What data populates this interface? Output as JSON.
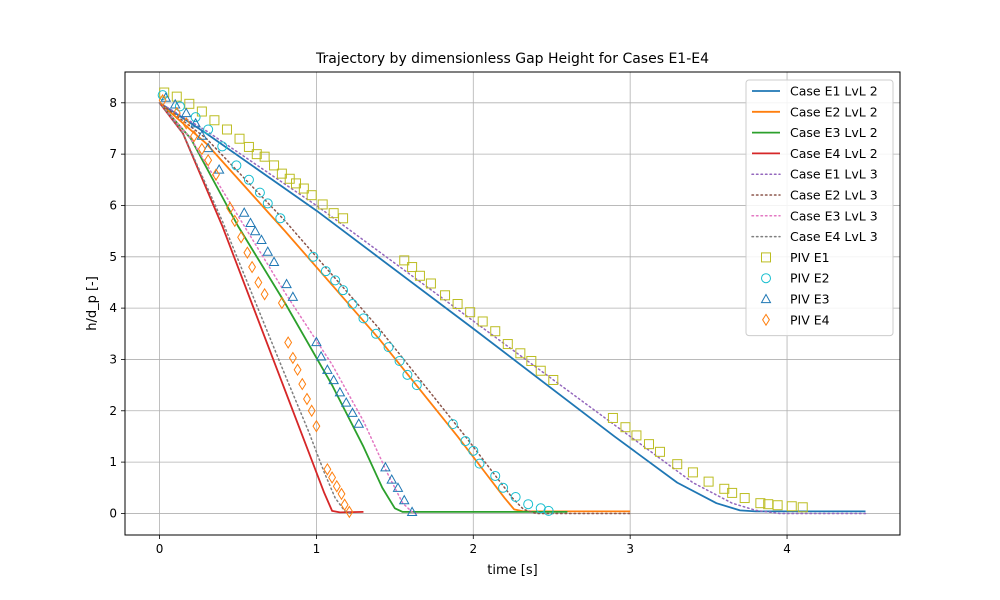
{
  "chart_data": {
    "type": "line",
    "title": "Trajectory by dimensionless Gap Height for Cases E1-E4",
    "xlabel": "time [s]",
    "ylabel": "h/d_p [-]",
    "xlim": [
      -0.22,
      4.72
    ],
    "ylim": [
      -0.42,
      8.6
    ],
    "xticks": [
      0,
      1,
      2,
      3,
      4
    ],
    "yticks": [
      0,
      1,
      2,
      3,
      4,
      5,
      6,
      7,
      8
    ],
    "grid": true,
    "legend_position": "top-right",
    "series": [
      {
        "name": "Case E1 LvL 2",
        "kind": "line",
        "style": "solid",
        "color": "#1f77b4",
        "x": [
          0,
          0.3,
          1.0,
          2.0,
          2.9,
          3.3,
          3.55,
          3.7,
          3.8,
          4.5
        ],
        "y": [
          8,
          7.4,
          5.9,
          3.6,
          1.5,
          0.6,
          0.2,
          0.06,
          0.04,
          0.04
        ]
      },
      {
        "name": "Case E2 LvL 2",
        "kind": "line",
        "style": "solid",
        "color": "#ff7f0e",
        "x": [
          0,
          0.3,
          0.8,
          1.4,
          1.9,
          2.1,
          2.2,
          2.26,
          2.32,
          3.0
        ],
        "y": [
          8,
          7.2,
          5.5,
          3.4,
          1.5,
          0.7,
          0.3,
          0.08,
          0.04,
          0.04
        ]
      },
      {
        "name": "Case E3 LvL 2",
        "kind": "line",
        "style": "solid",
        "color": "#2ca02c",
        "x": [
          0,
          0.2,
          0.5,
          0.8,
          1.1,
          1.3,
          1.42,
          1.5,
          1.55,
          2.6
        ],
        "y": [
          8,
          7.3,
          5.6,
          4.1,
          2.5,
          1.3,
          0.5,
          0.1,
          0.03,
          0.03
        ]
      },
      {
        "name": "Case E4 LvL 2",
        "kind": "line",
        "style": "solid",
        "color": "#d62728",
        "x": [
          0,
          0.15,
          0.4,
          0.6,
          0.8,
          0.95,
          1.05,
          1.1,
          1.15,
          1.3
        ],
        "y": [
          8,
          7.4,
          5.6,
          4.0,
          2.4,
          1.2,
          0.4,
          0.05,
          0.02,
          0.03
        ]
      },
      {
        "name": "Case E1 LvL 3",
        "kind": "line",
        "style": "dotted",
        "color": "#9467bd",
        "x": [
          0,
          0.3,
          1.0,
          2.0,
          3.0,
          3.4,
          3.65,
          3.8,
          3.95,
          4.5
        ],
        "y": [
          8,
          7.45,
          6.0,
          3.75,
          1.5,
          0.6,
          0.2,
          0.06,
          0.0,
          0.0
        ]
      },
      {
        "name": "Case E2 LvL 3",
        "kind": "line",
        "style": "dotted",
        "color": "#8c564b",
        "x": [
          0,
          0.3,
          0.8,
          1.4,
          1.95,
          2.15,
          2.25,
          2.32,
          2.4,
          3.0
        ],
        "y": [
          8,
          7.3,
          5.7,
          3.6,
          1.5,
          0.7,
          0.3,
          0.08,
          0.0,
          0.0
        ]
      },
      {
        "name": "Case E3 LvL 3",
        "kind": "line",
        "style": "dotted",
        "color": "#e377c2",
        "x": [
          0,
          0.2,
          0.5,
          0.8,
          1.1,
          1.3,
          1.45,
          1.55,
          1.62,
          1.65
        ],
        "y": [
          8,
          7.3,
          5.8,
          4.3,
          2.9,
          1.8,
          0.8,
          0.2,
          0.0,
          0.0
        ]
      },
      {
        "name": "Case E4 LvL 3",
        "kind": "line",
        "style": "dotted",
        "color": "#7f7f7f",
        "x": [
          0,
          0.15,
          0.4,
          0.6,
          0.8,
          0.95,
          1.05,
          1.12,
          1.18,
          1.22
        ],
        "y": [
          8,
          7.4,
          5.7,
          4.2,
          2.7,
          1.6,
          0.8,
          0.3,
          0.05,
          0.0
        ]
      },
      {
        "name": "PIV E1",
        "kind": "marker",
        "marker": "square",
        "color": "#bcbd22",
        "x": [
          0.03,
          0.11,
          0.19,
          0.27,
          0.35,
          0.43,
          0.51,
          0.57,
          0.62,
          0.67,
          0.73,
          0.78,
          0.83,
          0.87,
          0.92,
          0.97,
          1.04,
          1.11,
          1.17,
          1.56,
          1.61,
          1.66,
          1.73,
          1.82,
          1.9,
          1.98,
          2.06,
          2.14,
          2.22,
          2.3,
          2.37,
          2.43,
          2.51,
          2.89,
          2.97,
          3.04,
          3.12,
          3.19,
          3.3,
          3.4,
          3.5,
          3.6,
          3.65,
          3.73,
          3.83,
          3.88,
          3.94,
          4.03,
          4.1
        ],
        "y": [
          8.2,
          8.12,
          7.98,
          7.83,
          7.66,
          7.48,
          7.3,
          7.14,
          7.0,
          6.95,
          6.78,
          6.62,
          6.52,
          6.43,
          6.33,
          6.2,
          6.02,
          5.85,
          5.75,
          4.93,
          4.8,
          4.63,
          4.48,
          4.25,
          4.08,
          3.92,
          3.74,
          3.55,
          3.3,
          3.12,
          2.97,
          2.78,
          2.6,
          1.86,
          1.68,
          1.52,
          1.35,
          1.2,
          0.96,
          0.8,
          0.62,
          0.48,
          0.4,
          0.3,
          0.2,
          0.18,
          0.16,
          0.14,
          0.12
        ]
      },
      {
        "name": "PIV E2",
        "kind": "marker",
        "marker": "circle",
        "color": "#17becf",
        "x": [
          0.02,
          0.13,
          0.23,
          0.31,
          0.4,
          0.49,
          0.57,
          0.64,
          0.69,
          0.77,
          0.98,
          1.06,
          1.12,
          1.17,
          1.23,
          1.3,
          1.38,
          1.46,
          1.53,
          1.58,
          1.64,
          1.87,
          1.95,
          2.0,
          2.04,
          2.14,
          2.19,
          2.27,
          2.35,
          2.43,
          2.48
        ],
        "y": [
          8.15,
          7.93,
          7.72,
          7.48,
          7.15,
          6.78,
          6.5,
          6.25,
          6.04,
          5.75,
          5.0,
          4.72,
          4.54,
          4.35,
          4.08,
          3.8,
          3.5,
          3.24,
          2.97,
          2.7,
          2.5,
          1.74,
          1.41,
          1.22,
          0.97,
          0.73,
          0.5,
          0.32,
          0.18,
          0.1,
          0.05
        ]
      },
      {
        "name": "PIV E3",
        "kind": "marker",
        "marker": "triangle",
        "color": "#1f77b4",
        "x": [
          0.04,
          0.1,
          0.17,
          0.23,
          0.27,
          0.31,
          0.38,
          0.54,
          0.58,
          0.61,
          0.65,
          0.69,
          0.73,
          0.81,
          0.85,
          1.0,
          1.03,
          1.07,
          1.11,
          1.15,
          1.19,
          1.23,
          1.27,
          1.44,
          1.48,
          1.52,
          1.56,
          1.61
        ],
        "y": [
          8.1,
          7.97,
          7.8,
          7.6,
          7.36,
          7.12,
          6.7,
          5.86,
          5.66,
          5.5,
          5.33,
          5.1,
          4.9,
          4.47,
          4.22,
          3.34,
          3.06,
          2.8,
          2.6,
          2.36,
          2.16,
          1.96,
          1.75,
          0.9,
          0.66,
          0.5,
          0.26,
          0.03
        ]
      },
      {
        "name": "PIV E4",
        "kind": "marker",
        "marker": "diamond",
        "color": "#ff7f0e",
        "x": [
          0.02,
          0.11,
          0.17,
          0.22,
          0.27,
          0.31,
          0.36,
          0.45,
          0.48,
          0.52,
          0.56,
          0.59,
          0.63,
          0.67,
          0.78,
          0.82,
          0.85,
          0.88,
          0.91,
          0.94,
          0.97,
          1.0,
          1.07,
          1.1,
          1.13,
          1.16,
          1.18,
          1.21
        ],
        "y": [
          8.05,
          7.8,
          7.6,
          7.35,
          7.1,
          6.88,
          6.6,
          5.95,
          5.7,
          5.38,
          5.08,
          4.8,
          4.5,
          4.27,
          4.1,
          3.33,
          3.03,
          2.8,
          2.52,
          2.23,
          2.0,
          1.7,
          0.86,
          0.7,
          0.53,
          0.38,
          0.17,
          0.03
        ]
      }
    ]
  }
}
